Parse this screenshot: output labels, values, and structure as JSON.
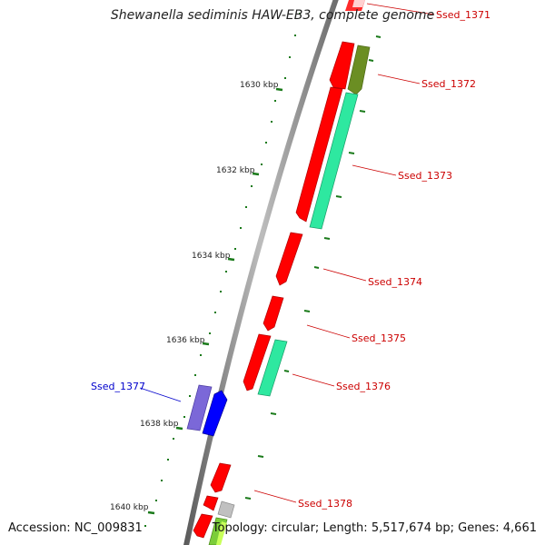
{
  "title": "Shewanella sediminis HAW-EB3, complete genome",
  "footer": {
    "accession_label": "Accession:",
    "accession": "NC_009831",
    "topology_label": "Topology:",
    "topology": "circular",
    "length_label": "Length:",
    "length": "5,517,674 bp",
    "genes_label": "Genes:",
    "genes": "4,661"
  },
  "ticks": [
    {
      "label": "1630 kbp"
    },
    {
      "label": "1632 kbp"
    },
    {
      "label": "1634 kbp"
    },
    {
      "label": "1636 kbp"
    },
    {
      "label": "1638 kbp"
    },
    {
      "label": "1640 kbp"
    }
  ],
  "genes": [
    {
      "name": "Ssed_1371",
      "color": "#ff0000"
    },
    {
      "name": "Ssed_1372",
      "color": "#6b8e23"
    },
    {
      "name": "Ssed_1373",
      "color": "#2ee8a0"
    },
    {
      "name": "Ssed_1374",
      "color": "#ff0000"
    },
    {
      "name": "Ssed_1375",
      "color": "#ff0000"
    },
    {
      "name": "Ssed_1376",
      "color": "#2ee8a0"
    },
    {
      "name": "Ssed_1377",
      "color": "#0000ff"
    },
    {
      "name": "Ssed_1378",
      "color": "#ff0000"
    }
  ],
  "colors": {
    "label_red": "#cc0000",
    "label_blue": "#0000cc",
    "backbone": "#888888",
    "tick": "#1a7a1a"
  }
}
